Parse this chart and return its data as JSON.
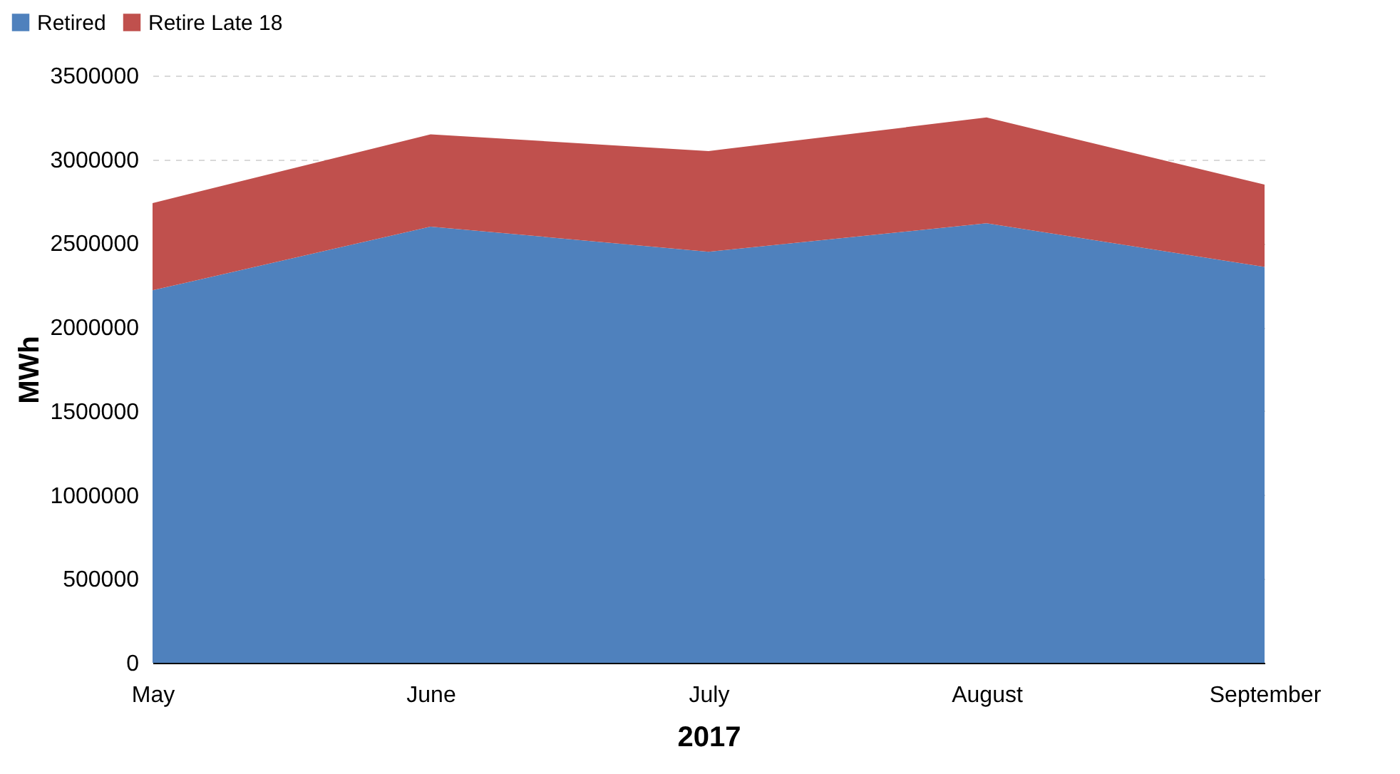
{
  "chart_data": {
    "type": "area",
    "stacked": true,
    "xlabel": "2017",
    "ylabel": "MWh",
    "categories": [
      "May",
      "June",
      "July",
      "August",
      "September"
    ],
    "series": [
      {
        "name": "Retired",
        "color": "#4f81bd",
        "values": [
          2220000,
          2600000,
          2450000,
          2620000,
          2360000
        ]
      },
      {
        "name": "Retire Late 18",
        "color": "#c0504d",
        "values": [
          520000,
          550000,
          600000,
          630000,
          490000
        ]
      }
    ],
    "ylim": [
      0,
      3500000
    ],
    "yticks": [
      0,
      500000,
      1000000,
      1500000,
      2000000,
      2500000,
      3000000,
      3500000
    ],
    "grid": "y",
    "legend": "top left"
  }
}
